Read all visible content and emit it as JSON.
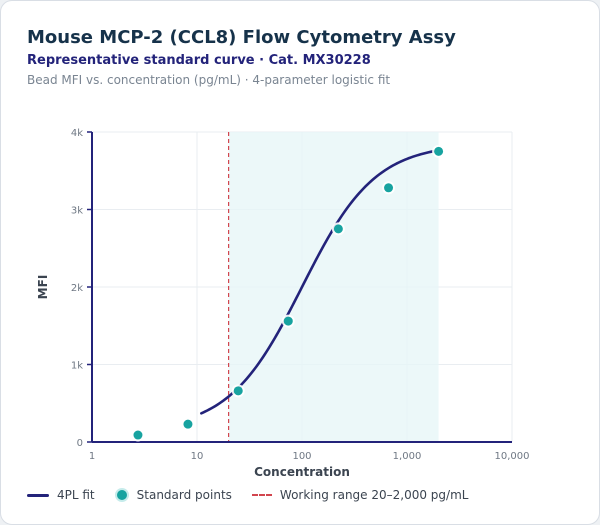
{
  "header": {
    "title": "Mouse MCP-2 (CCL8) Flow Cytometry Assy",
    "subtitle": "Representative standard curve · Cat. MX30228",
    "caption": "Bead MFI vs. concentration (pg/mL) · 4-parameter logistic fit"
  },
  "legend": {
    "fit_label": "4PL fit",
    "points_label": "Standard points",
    "range_label": "Working range 20–2,000 pg/mL"
  },
  "colors": {
    "fit": "#23237a",
    "points": "#17a3a0",
    "range_line": "#d2454e",
    "range_fill": "#e6f6f7"
  },
  "chart_data": {
    "type": "scatter",
    "xlabel": "Concentration",
    "ylabel": "MFI",
    "x_scale": "log",
    "xlim": [
      1,
      10000
    ],
    "ylim": [
      0,
      4000
    ],
    "x_ticks": [
      1,
      10,
      100,
      1000,
      10000
    ],
    "x_tick_labels": [
      "1",
      "10",
      "100",
      "1,000",
      "10,000"
    ],
    "y_ticks": [
      0,
      1000,
      2000,
      3000,
      4000
    ],
    "y_tick_labels": [
      "0",
      "1k",
      "2k",
      "3k",
      "4k"
    ],
    "grid": true,
    "legend_position": "bottom-left",
    "working_range": [
      20,
      2000
    ],
    "series": [
      {
        "name": "Standard points",
        "points": [
          {
            "x": 2.74,
            "y": 90
          },
          {
            "x": 8.2,
            "y": 230
          },
          {
            "x": 24.7,
            "y": 660
          },
          {
            "x": 74,
            "y": 1560
          },
          {
            "x": 222,
            "y": 2750
          },
          {
            "x": 667,
            "y": 3280
          },
          {
            "x": 2000,
            "y": 3750
          }
        ]
      }
    ],
    "fit": {
      "name": "4PL fit",
      "x_range": [
        11,
        2000
      ],
      "model": {
        "a": 150,
        "d": 3850,
        "c": 100,
        "b": 1.25
      }
    }
  }
}
